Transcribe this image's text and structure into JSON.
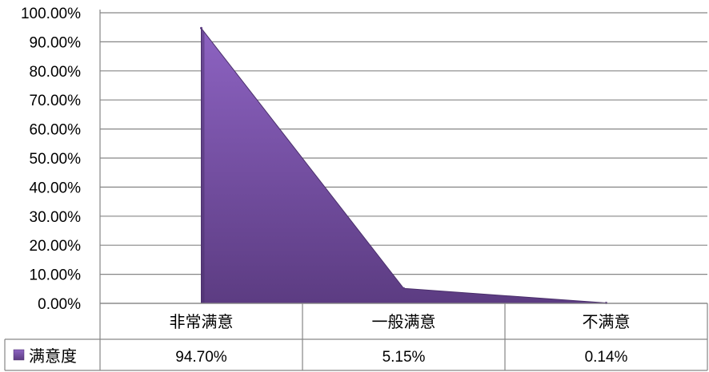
{
  "chart_data": {
    "type": "area",
    "categories": [
      "非常满意",
      "一般满意",
      "不满意"
    ],
    "series": [
      {
        "name": "满意度",
        "values": [
          94.7,
          5.15,
          0.14
        ],
        "labels": [
          "94.70%",
          "5.15%",
          "0.14%"
        ]
      }
    ],
    "y_ticks": [
      "0.00%",
      "10.00%",
      "20.00%",
      "30.00%",
      "40.00%",
      "50.00%",
      "60.00%",
      "70.00%",
      "80.00%",
      "90.00%",
      "100.00%"
    ],
    "ylim": [
      0,
      100
    ],
    "grid": true,
    "legend": "data-table-left",
    "colors": {
      "area_top": "#8d63c2",
      "area_bottom": "#5c3c82",
      "grid": "#868686",
      "table_border": "#868686"
    }
  }
}
